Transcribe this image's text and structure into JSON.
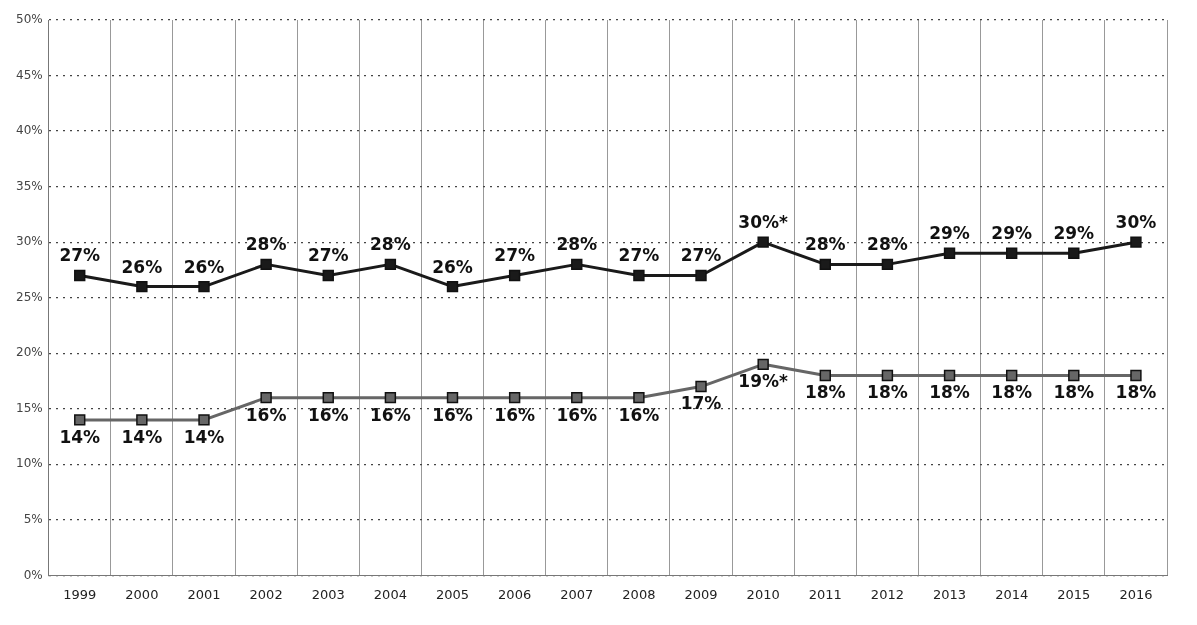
{
  "chart_data": {
    "type": "line",
    "categories": [
      "1999",
      "2000",
      "2001",
      "2002",
      "2003",
      "2004",
      "2005",
      "2006",
      "2007",
      "2008",
      "2009",
      "2010",
      "2011",
      "2012",
      "2013",
      "2014",
      "2015",
      "2016"
    ],
    "series": [
      {
        "color": "#1a1a1a",
        "values": [
          27,
          26,
          26,
          28,
          27,
          28,
          26,
          27,
          28,
          27,
          27,
          30,
          28,
          28,
          29,
          29,
          29,
          30
        ],
        "value_labels": [
          "27%",
          "26%",
          "26%",
          "28%",
          "27%",
          "28%",
          "26%",
          "27%",
          "28%",
          "27%",
          "27%",
          "30%*",
          "28%",
          "28%",
          "29%",
          "29%",
          "29%",
          "30%"
        ]
      },
      {
        "color": "#666666",
        "values": [
          14,
          14,
          14,
          16,
          16,
          16,
          16,
          16,
          16,
          16,
          17,
          19,
          18,
          18,
          18,
          18,
          18,
          18
        ],
        "value_labels": [
          "14%",
          "14%",
          "14%",
          "16%",
          "16%",
          "16%",
          "16%",
          "16%",
          "16%",
          "16%",
          "17%",
          "19%*",
          "18%",
          "18%",
          "18%",
          "18%",
          "18%",
          "18%"
        ]
      }
    ],
    "ylim": [
      0,
      50
    ],
    "yticks": [
      {
        "value": 0,
        "label": "0%"
      },
      {
        "value": 5,
        "label": "5%"
      },
      {
        "value": 10,
        "label": "10%"
      },
      {
        "value": 15,
        "label": "15%"
      },
      {
        "value": 20,
        "label": "20%"
      },
      {
        "value": 25,
        "label": "25%"
      },
      {
        "value": 30,
        "label": "30%"
      },
      {
        "value": 35,
        "label": "35%"
      },
      {
        "value": 40,
        "label": "40%"
      },
      {
        "value": 45,
        "label": "45%"
      },
      {
        "value": 50,
        "label": "50%"
      }
    ],
    "grid": true,
    "legend": false,
    "marker": "square",
    "line_style": "solid"
  }
}
